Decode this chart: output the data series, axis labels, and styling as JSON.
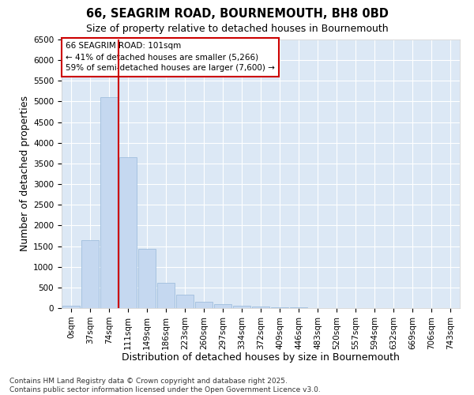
{
  "title": "66, SEAGRIM ROAD, BOURNEMOUTH, BH8 0BD",
  "subtitle": "Size of property relative to detached houses in Bournemouth",
  "xlabel": "Distribution of detached houses by size in Bournemouth",
  "ylabel": "Number of detached properties",
  "bar_color": "#c5d8f0",
  "bar_edge_color": "#a0bedd",
  "categories": [
    "0sqm",
    "37sqm",
    "74sqm",
    "111sqm",
    "149sqm",
    "186sqm",
    "223sqm",
    "260sqm",
    "297sqm",
    "334sqm",
    "372sqm",
    "409sqm",
    "446sqm",
    "483sqm",
    "520sqm",
    "557sqm",
    "594sqm",
    "632sqm",
    "669sqm",
    "706sqm",
    "743sqm"
  ],
  "values": [
    60,
    1650,
    5100,
    3650,
    1430,
    610,
    320,
    155,
    100,
    55,
    40,
    20,
    10,
    6,
    4,
    3,
    2,
    1,
    1,
    0,
    0
  ],
  "ylim": [
    0,
    6500
  ],
  "yticks": [
    0,
    500,
    1000,
    1500,
    2000,
    2500,
    3000,
    3500,
    4000,
    4500,
    5000,
    5500,
    6000,
    6500
  ],
  "vline_bar_index": 2,
  "annotation_title": "66 SEAGRIM ROAD: 101sqm",
  "annotation_line1": "← 41% of detached houses are smaller (5,266)",
  "annotation_line2": "59% of semi-detached houses are larger (7,600) →",
  "vline_color": "#cc0000",
  "annotation_box_facecolor": "#ffffff",
  "annotation_box_edgecolor": "#cc0000",
  "figure_bg_color": "#ffffff",
  "plot_bg_color": "#dce8f5",
  "grid_color": "#ffffff",
  "footer_line1": "Contains HM Land Registry data © Crown copyright and database right 2025.",
  "footer_line2": "Contains public sector information licensed under the Open Government Licence v3.0.",
  "title_fontsize": 10.5,
  "subtitle_fontsize": 9,
  "tick_fontsize": 7.5,
  "label_fontsize": 9,
  "annotation_fontsize": 7.5,
  "footer_fontsize": 6.5
}
